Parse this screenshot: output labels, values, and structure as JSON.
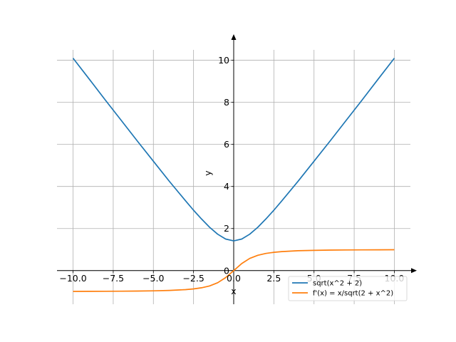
{
  "chart_data": {
    "type": "line",
    "title": "",
    "xlabel": "x",
    "ylabel": "y",
    "xlim": [
      -11.0,
      11.0
    ],
    "ylim": [
      -1.6,
      10.9
    ],
    "grid": true,
    "legend_position": "lower-right",
    "xticks": [
      -10,
      -7.5,
      -5,
      -2.5,
      0,
      2.5,
      5,
      7.5,
      10
    ],
    "xtick_labels": [
      "−10.0",
      "−7.5",
      "−5.0",
      "−2.5",
      "0.0",
      "2.5",
      "5.0",
      "7.5",
      "10.0"
    ],
    "yticks": [
      0,
      2,
      4,
      6,
      8,
      10
    ],
    "ytick_labels": [
      "0",
      "2",
      "4",
      "6",
      "8",
      "10"
    ],
    "series": [
      {
        "name": "sqrt(x^2 + 2)",
        "color": "#1f77b4",
        "x": [
          -10,
          -9,
          -8,
          -7,
          -6,
          -5,
          -4,
          -3,
          -2.5,
          -2,
          -1.5,
          -1,
          -0.5,
          0,
          0.5,
          1,
          1.5,
          2,
          2.5,
          3,
          4,
          5,
          6,
          7,
          8,
          9,
          10
        ],
        "y": [
          10.1,
          9.11,
          8.12,
          7.14,
          6.16,
          5.2,
          4.24,
          3.32,
          2.87,
          2.45,
          2.06,
          1.73,
          1.5,
          1.41,
          1.5,
          1.73,
          2.06,
          2.45,
          2.87,
          3.32,
          4.24,
          5.2,
          6.16,
          7.14,
          8.12,
          9.11,
          10.1
        ]
      },
      {
        "name": "f'(x) = x/sqrt(2 + x^2)",
        "color": "#ff7f0e",
        "x": [
          -10,
          -9,
          -8,
          -7,
          -6,
          -5,
          -4,
          -3,
          -2.5,
          -2,
          -1.5,
          -1,
          -0.5,
          0,
          0.5,
          1,
          1.5,
          2,
          2.5,
          3,
          4,
          5,
          6,
          7,
          8,
          9,
          10
        ],
        "y": [
          -0.99,
          -0.988,
          -0.985,
          -0.98,
          -0.973,
          -0.962,
          -0.943,
          -0.905,
          -0.87,
          -0.816,
          -0.728,
          -0.577,
          -0.333,
          0,
          0.333,
          0.577,
          0.728,
          0.816,
          0.87,
          0.905,
          0.943,
          0.962,
          0.973,
          0.98,
          0.985,
          0.988,
          0.99
        ]
      }
    ]
  }
}
